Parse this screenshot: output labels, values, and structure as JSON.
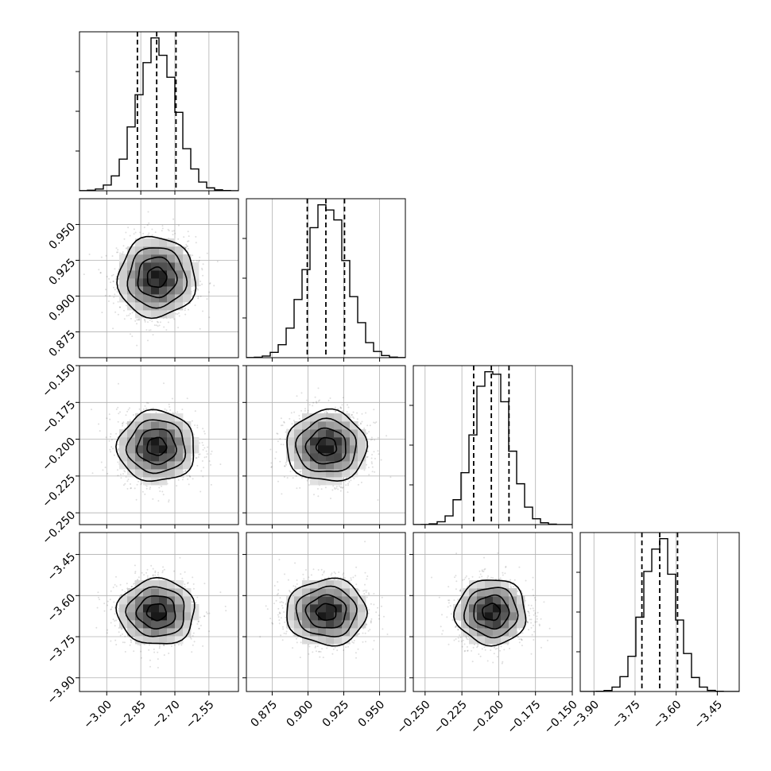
{
  "chart_data": {
    "type": "corner",
    "parameters": [
      {
        "mean": -2.78,
        "sigma": 0.085,
        "range": [
          -3.12,
          -2.42
        ],
        "ticks": [
          -3.0,
          -2.85,
          -2.7,
          -2.55
        ],
        "tick_labels": [
          "−3.00",
          "−2.85",
          "−2.70",
          "−2.55"
        ],
        "quantiles": [
          -2.865,
          -2.78,
          -2.695
        ]
      },
      {
        "mean": 0.913,
        "sigma": 0.014,
        "range": [
          0.857,
          0.968
        ],
        "ticks": [
          0.875,
          0.9,
          0.925,
          0.95
        ],
        "tick_labels": [
          "0.875",
          "0.900",
          "0.925",
          "0.950"
        ],
        "quantiles": [
          0.8995,
          0.9125,
          0.9255
        ]
      },
      {
        "mean": -0.205,
        "sigma": 0.012,
        "range": [
          -0.258,
          -0.15
        ],
        "ticks": [
          -0.25,
          -0.225,
          -0.2,
          -0.175,
          -0.15
        ],
        "tick_labels": [
          "−0.250",
          "−0.225",
          "−0.200",
          "−0.175",
          "−0.150"
        ],
        "quantiles": [
          -0.217,
          -0.205,
          -0.193
        ]
      },
      {
        "mean": -3.66,
        "sigma": 0.06,
        "range": [
          -3.95,
          -3.37
        ],
        "ticks": [
          -3.9,
          -3.75,
          -3.6,
          -3.45
        ],
        "tick_labels": [
          "−3.90",
          "−3.75",
          "−3.60",
          "−3.45"
        ],
        "quantiles": [
          -3.725,
          -3.66,
          -3.595
        ]
      }
    ],
    "histogram_bins": 20,
    "contour_levels_sigma": [
      0.5,
      1.0,
      1.5,
      2.0
    ],
    "quantile_levels": [
      0.16,
      0.5,
      0.84
    ],
    "grid": true,
    "colors": {
      "hist": "#000000",
      "scatter": "#000000",
      "density": "#000000",
      "grid": "#b0b0b0"
    }
  }
}
